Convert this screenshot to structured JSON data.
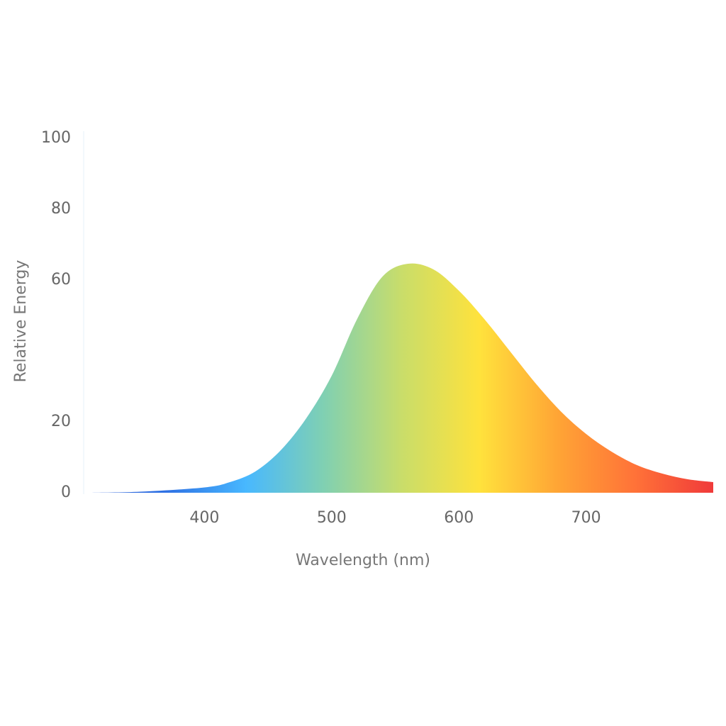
{
  "chart_data": {
    "type": "area",
    "x_label": "Wavelength (nm)",
    "y_label": "Relative Energy",
    "x": [
      310,
      350,
      400,
      420,
      440,
      460,
      480,
      500,
      520,
      540,
      560,
      580,
      600,
      620,
      640,
      660,
      680,
      700,
      720,
      740,
      760,
      780,
      800
    ],
    "values": [
      0,
      0.3,
      1.5,
      3,
      6,
      12,
      21,
      33,
      49,
      61,
      64.6,
      63,
      57,
      49,
      40,
      31,
      23,
      16.6,
      11.6,
      7.8,
      5.4,
      3.8,
      3
    ],
    "colors": [
      "#2a5fd8",
      "#2f72e4",
      "#48b8ff",
      "#80d0b2",
      "#c9dd6a",
      "#ffe23c",
      "#ffa535",
      "#ff7238",
      "#f03a3a"
    ],
    "xlim": [
      305,
      800
    ],
    "xticks": [
      400,
      500,
      600,
      700
    ],
    "ylim": [
      0,
      100
    ],
    "yticks": [
      0,
      20,
      60,
      80,
      100
    ],
    "grid": false
  }
}
